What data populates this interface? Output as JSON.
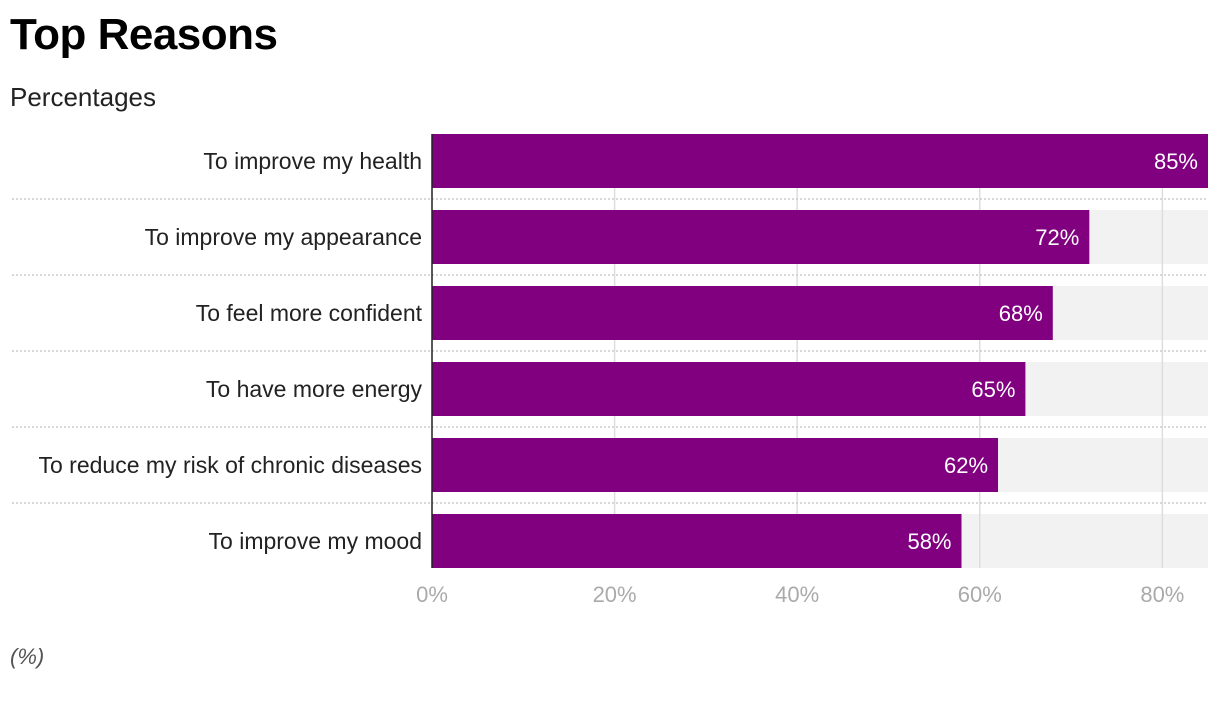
{
  "chart_data": {
    "type": "bar",
    "orientation": "horizontal",
    "title": "Top Reasons",
    "subtitle": "Percentages",
    "footnote": "(%)",
    "categories": [
      "To improve my health",
      "To improve my appearance",
      "To feel more confident",
      "To have more energy",
      "To reduce my risk of chronic diseases",
      "To improve my mood"
    ],
    "values": [
      85,
      72,
      68,
      65,
      62,
      58
    ],
    "value_labels": [
      "85%",
      "72%",
      "68%",
      "65%",
      "62%",
      "58%"
    ],
    "xlim": [
      0,
      85
    ],
    "xticks": [
      0,
      20,
      40,
      60,
      80
    ],
    "xtick_labels": [
      "0%",
      "20%",
      "40%",
      "60%",
      "80%"
    ],
    "grid": true,
    "colors": {
      "bar": "#800080",
      "track": "#f2f2f2",
      "grid": "#dddddd",
      "separator": "#cccccc",
      "tick_text": "#aaaaaa",
      "label_text": "#222222",
      "value_text": "#ffffff"
    }
  }
}
